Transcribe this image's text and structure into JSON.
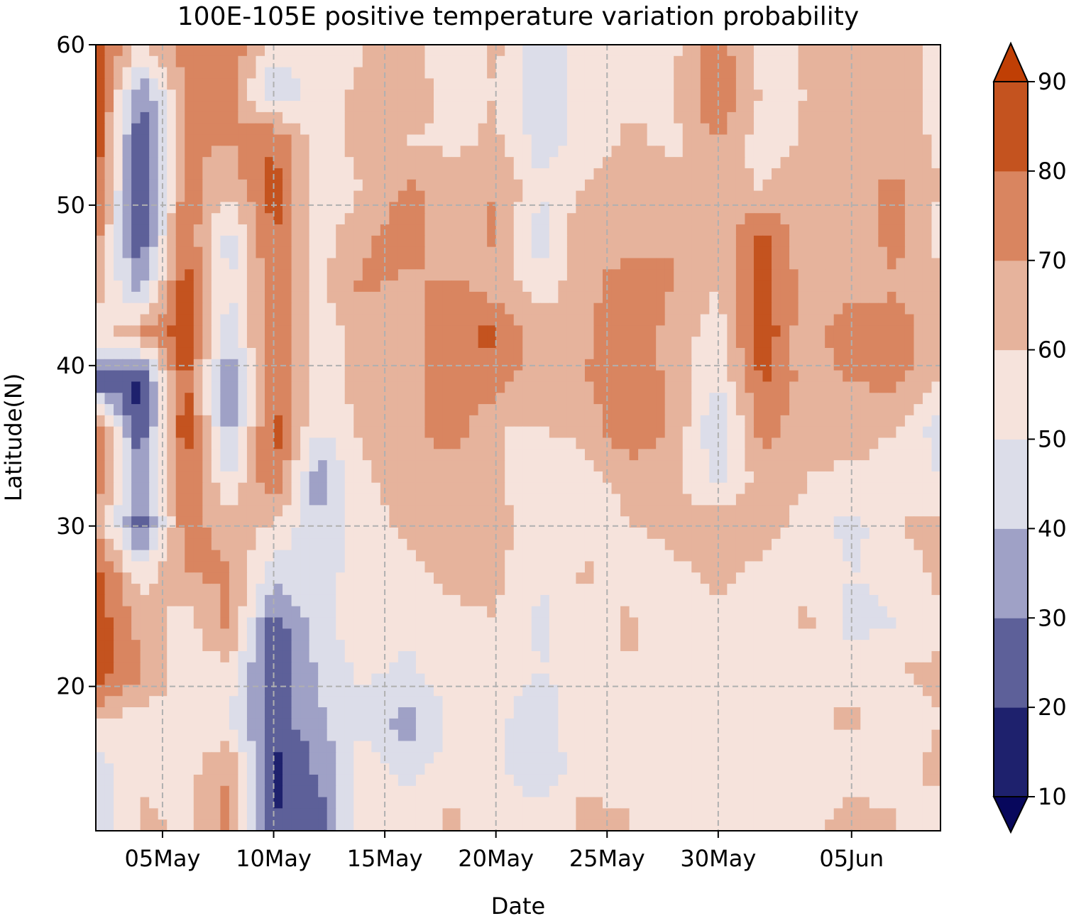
{
  "chart_data": {
    "type": "heatmap",
    "subtype": "filled-contour",
    "title": "100E-105E positive temperature variation probability",
    "xlabel": "Date",
    "ylabel": "Latitude(N)",
    "x_start": "2 May",
    "x_end": "9 Jun",
    "x_step_days": 1,
    "xticks": [
      {
        "label": "05May",
        "day": 3
      },
      {
        "label": "10May",
        "day": 8
      },
      {
        "label": "15May",
        "day": 13
      },
      {
        "label": "20May",
        "day": 18
      },
      {
        "label": "25May",
        "day": 23
      },
      {
        "label": "30May",
        "day": 28
      },
      {
        "label": "05Jun",
        "day": 34
      }
    ],
    "ylim": [
      11,
      60
    ],
    "yticks": [
      20,
      30,
      40,
      50,
      60
    ],
    "grid": true,
    "colorbar": {
      "levels": [
        10,
        20,
        30,
        40,
        50,
        60,
        70,
        80,
        90
      ],
      "tick_labels": [
        "10",
        "20",
        "30",
        "40",
        "50",
        "60",
        "70",
        "80",
        "90"
      ],
      "extend": "both",
      "colors": [
        "#07075c",
        "#1e216d",
        "#5d6099",
        "#9fa1c6",
        "#dcdde9",
        "#f6e3dc",
        "#e6b39c",
        "#d98560",
        "#c4531f",
        "#c03f05"
      ]
    },
    "field_note": "probability (%) on a Date x Latitude grid",
    "field_rows_lat": [
      60,
      57,
      54,
      51,
      48,
      45,
      42,
      39,
      36,
      33,
      30,
      27,
      24,
      21,
      18,
      15,
      12
    ],
    "field_cols_day": [
      0,
      2,
      4,
      6,
      8,
      10,
      12,
      14,
      16,
      18,
      20,
      22,
      24,
      26,
      28,
      30,
      32,
      34,
      36,
      38
    ],
    "field": [
      [
        90,
        58,
        75,
        78,
        55,
        52,
        60,
        65,
        50,
        62,
        45,
        55,
        60,
        58,
        75,
        55,
        62,
        60,
        65,
        58
      ],
      [
        90,
        30,
        70,
        75,
        40,
        55,
        62,
        68,
        55,
        60,
        42,
        55,
        58,
        60,
        80,
        58,
        60,
        62,
        68,
        55
      ],
      [
        88,
        18,
        72,
        70,
        80,
        55,
        65,
        60,
        58,
        62,
        45,
        55,
        62,
        58,
        70,
        55,
        62,
        65,
        65,
        58
      ],
      [
        85,
        15,
        75,
        62,
        85,
        50,
        60,
        72,
        65,
        70,
        52,
        60,
        66,
        62,
        62,
        60,
        65,
        68,
        72,
        60
      ],
      [
        75,
        20,
        80,
        45,
        82,
        55,
        68,
        75,
        62,
        72,
        42,
        70,
        62,
        70,
        65,
        82,
        62,
        62,
        75,
        55
      ],
      [
        65,
        35,
        85,
        48,
        78,
        58,
        72,
        68,
        72,
        65,
        55,
        65,
        78,
        70,
        60,
        85,
        65,
        65,
        68,
        62
      ],
      [
        55,
        70,
        88,
        45,
        80,
        55,
        62,
        65,
        78,
        82,
        65,
        68,
        80,
        65,
        55,
        88,
        62,
        80,
        78,
        62
      ],
      [
        25,
        15,
        85,
        25,
        78,
        55,
        65,
        62,
        80,
        75,
        62,
        70,
        75,
        68,
        50,
        82,
        65,
        70,
        72,
        60
      ],
      [
        80,
        20,
        88,
        35,
        85,
        50,
        62,
        68,
        75,
        60,
        60,
        62,
        80,
        68,
        40,
        75,
        62,
        65,
        60,
        45
      ],
      [
        75,
        35,
        80,
        50,
        82,
        32,
        58,
        65,
        65,
        62,
        50,
        58,
        62,
        62,
        48,
        65,
        60,
        58,
        55,
        50
      ],
      [
        72,
        22,
        75,
        65,
        58,
        42,
        55,
        62,
        65,
        65,
        52,
        55,
        60,
        62,
        70,
        62,
        58,
        45,
        60,
        62
      ],
      [
        85,
        55,
        70,
        72,
        45,
        48,
        52,
        58,
        62,
        62,
        50,
        62,
        55,
        58,
        62,
        58,
        58,
        50,
        55,
        62
      ],
      [
        88,
        65,
        55,
        72,
        25,
        45,
        58,
        52,
        58,
        60,
        48,
        55,
        62,
        52,
        58,
        55,
        62,
        45,
        50,
        58
      ],
      [
        88,
        72,
        55,
        58,
        18,
        42,
        52,
        48,
        55,
        55,
        50,
        52,
        60,
        50,
        58,
        55,
        55,
        55,
        60,
        62
      ],
      [
        62,
        55,
        58,
        48,
        25,
        38,
        48,
        35,
        52,
        52,
        45,
        58,
        52,
        55,
        50,
        55,
        58,
        62,
        55,
        60
      ],
      [
        45,
        58,
        55,
        70,
        15,
        32,
        55,
        45,
        55,
        52,
        40,
        58,
        55,
        52,
        55,
        52,
        60,
        55,
        58,
        62
      ],
      [
        40,
        62,
        58,
        75,
        20,
        25,
        58,
        55,
        62,
        55,
        55,
        62,
        60,
        55,
        52,
        55,
        58,
        62,
        60,
        58
      ]
    ]
  }
}
